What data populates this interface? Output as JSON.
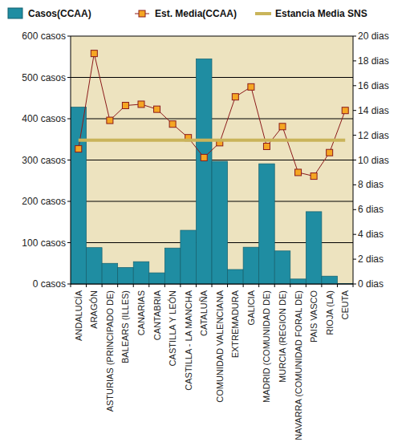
{
  "chart_data": {
    "type": "bar",
    "categories": [
      "ANDALUCÍA",
      "ARAGÓN",
      "ASTURIAS (PRINCIPADO DE)",
      "BALEARS (ILLES)",
      "CANARIAS",
      "CANTABRIA",
      "CASTILLA Y LEÓN",
      "CASTILLA - LA MANCHA",
      "CATALUÑA",
      "COMUNIDAD VALENCIANA",
      "EXTREMADURA",
      "GALICIA",
      "MADRID (COMUNIDAD DE)",
      "MURCIA (REGION DE)",
      "NAVARRA (COMUNIDAD FORAL DE)",
      "PAIS VASCO",
      "RIOJA (LA)",
      "CEUTA"
    ],
    "series": [
      {
        "name": "Casos(CCAA)",
        "type": "bar",
        "axis": "y",
        "color": "#1f8da2",
        "values": [
          428,
          88,
          50,
          40,
          54,
          27,
          87,
          130,
          545,
          297,
          35,
          89,
          291,
          80,
          12,
          175,
          19,
          1
        ]
      },
      {
        "name": "Est. Media(CCAA)",
        "type": "line",
        "axis": "y2",
        "color": "#8b1a1a",
        "marker": "square",
        "line_style": "solid",
        "values": [
          10.9,
          18.6,
          13.2,
          14.4,
          14.5,
          14.1,
          12.9,
          11.8,
          10.2,
          11.4,
          15.1,
          15.9,
          11.1,
          12.7,
          9.0,
          8.7,
          10.6,
          14.0
        ]
      },
      {
        "name": "Estancia Media SNS",
        "type": "line",
        "axis": "y2",
        "color": "#c9b45a",
        "marker": "none",
        "line_style": "solid",
        "values": [
          11.6,
          11.6,
          11.6,
          11.6,
          11.6,
          11.6,
          11.6,
          11.6,
          11.6,
          11.6,
          11.6,
          11.6,
          11.6,
          11.6,
          11.6,
          11.6,
          11.6,
          11.6
        ]
      }
    ],
    "ylim": [
      0,
      600
    ],
    "yticks": [
      {
        "value": 0,
        "label": "0 casos"
      },
      {
        "value": 100,
        "label": "100 casos"
      },
      {
        "value": 200,
        "label": "200 casos"
      },
      {
        "value": 300,
        "label": "300 casos"
      },
      {
        "value": 400,
        "label": "400 casos"
      },
      {
        "value": 500,
        "label": "500 casos"
      },
      {
        "value": 600,
        "label": "600 casos"
      }
    ],
    "y2lim": [
      0,
      20
    ],
    "y2ticks": [
      {
        "value": 0,
        "label": "0 dias"
      },
      {
        "value": 2,
        "label": "2 dias"
      },
      {
        "value": 4,
        "label": "4 dias"
      },
      {
        "value": 6,
        "label": "6 dias"
      },
      {
        "value": 8,
        "label": "8 dias"
      },
      {
        "value": 10,
        "label": "10 dias"
      },
      {
        "value": 12,
        "label": "12 dias"
      },
      {
        "value": 14,
        "label": "14 dias"
      },
      {
        "value": 16,
        "label": "16 dias"
      },
      {
        "value": 18,
        "label": "18 dias"
      },
      {
        "value": 20,
        "label": "20 dias"
      }
    ],
    "grid": true,
    "legend": "top"
  }
}
